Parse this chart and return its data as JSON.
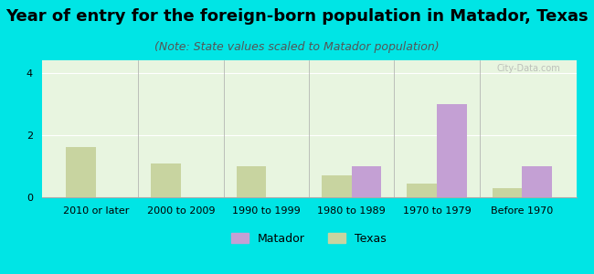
{
  "title": "Year of entry for the foreign-born population in Matador, Texas",
  "subtitle": "(Note: State values scaled to Matador population)",
  "categories": [
    "2010 or later",
    "2000 to 2009",
    "1990 to 1999",
    "1980 to 1989",
    "1970 to 1979",
    "Before 1970"
  ],
  "matador_values": [
    0,
    0,
    0,
    1.0,
    3.0,
    1.0
  ],
  "texas_values": [
    1.6,
    1.1,
    1.0,
    0.7,
    0.45,
    0.3
  ],
  "matador_color": "#c4a0d4",
  "texas_color": "#c8d4a0",
  "background_outer": "#00e5e5",
  "background_plot": "#e8f5e0",
  "ylim": [
    0,
    4.4
  ],
  "yticks": [
    0,
    2,
    4
  ],
  "bar_width": 0.35,
  "legend_labels": [
    "Matador",
    "Texas"
  ],
  "title_fontsize": 13,
  "subtitle_fontsize": 9,
  "tick_fontsize": 8
}
